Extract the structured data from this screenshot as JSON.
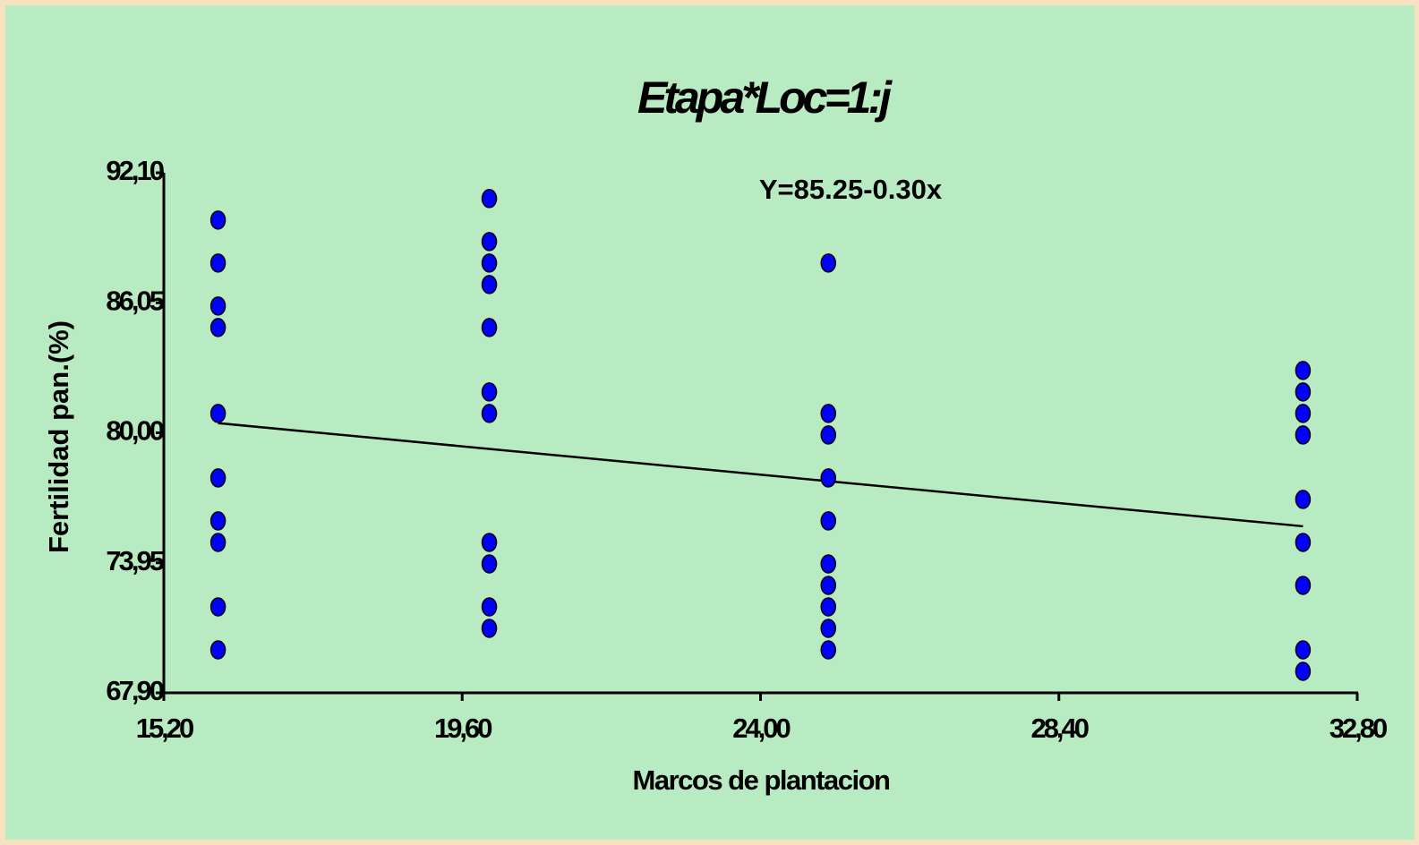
{
  "chart_data": {
    "type": "scatter",
    "title": "Etapa*Loc=1:j",
    "annotation": "Y=85.25-0.30x",
    "x_label": "Marcos de plantacion",
    "y_label": "Fertilidad pan.(%)",
    "xlim": [
      15.2,
      32.8
    ],
    "ylim": [
      67.9,
      92.1
    ],
    "xticks": [
      {
        "value": 15.2,
        "label": "15,20"
      },
      {
        "value": 19.6,
        "label": "19,60"
      },
      {
        "value": 24,
        "label": "24,00"
      },
      {
        "value": 28.4,
        "label": "28,40"
      },
      {
        "value": 32.8,
        "label": "32,80"
      }
    ],
    "yticks": [
      {
        "value": 67.9,
        "label": "67,90"
      },
      {
        "value": 73.95,
        "label": "73,95"
      },
      {
        "value": 80,
        "label": "80,00"
      },
      {
        "value": 86.05,
        "label": "86,05"
      },
      {
        "value": 92.1,
        "label": "92,10"
      }
    ],
    "series": [
      {
        "color": "#0000ff",
        "x": [
          16,
          16,
          16,
          16,
          16,
          16,
          16,
          16,
          16,
          16,
          20,
          20,
          20,
          20,
          20,
          20,
          20,
          20,
          20,
          20,
          20,
          25,
          25,
          25,
          25,
          25,
          25,
          25,
          25,
          25,
          25,
          32,
          32,
          32,
          32,
          32,
          32,
          32,
          32,
          32
        ],
        "values": [
          89.9,
          87.9,
          85.9,
          84.9,
          80.9,
          77.9,
          75.9,
          74.9,
          71.9,
          69.9,
          90.9,
          88.9,
          87.9,
          86.9,
          84.9,
          81.9,
          80.9,
          74.9,
          73.9,
          71.9,
          70.9,
          87.9,
          80.9,
          79.9,
          77.9,
          75.9,
          73.9,
          72.9,
          71.9,
          70.9,
          69.9,
          82.9,
          81.9,
          80.9,
          79.9,
          76.9,
          74.9,
          72.9,
          69.9,
          68.9
        ]
      }
    ],
    "trendline": {
      "color": "#000000",
      "x": [
        16,
        32
      ],
      "values": [
        80.45,
        75.65
      ]
    }
  }
}
